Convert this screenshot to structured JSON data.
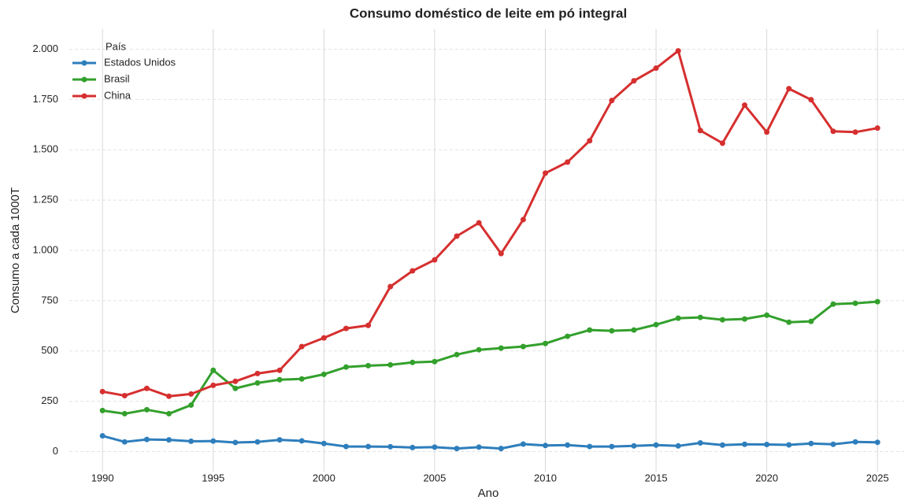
{
  "chart_data": {
    "type": "line",
    "title": "Consumo doméstico de leite em pó integral",
    "xlabel": "Ano",
    "ylabel": "Consumo a cada 1000T",
    "legend_title": "País",
    "legend": "upper left",
    "x": [
      1990,
      1991,
      1992,
      1993,
      1994,
      1995,
      1996,
      1997,
      1998,
      1999,
      2000,
      2001,
      2002,
      2003,
      2004,
      2005,
      2006,
      2007,
      2008,
      2009,
      2010,
      2011,
      2012,
      2013,
      2014,
      2015,
      2016,
      2017,
      2018,
      2019,
      2020,
      2021,
      2022,
      2023,
      2024,
      2025
    ],
    "series": [
      {
        "name": "Estados Unidos",
        "color": "#2e7ebc",
        "values": [
          78,
          48,
          60,
          58,
          51,
          52,
          45,
          48,
          58,
          53,
          40,
          25,
          25,
          24,
          20,
          22,
          15,
          22,
          15,
          37,
          30,
          32,
          25,
          25,
          28,
          32,
          28,
          43,
          32,
          36,
          35,
          33,
          40,
          36,
          48,
          46
        ]
      },
      {
        "name": "Brasil",
        "color": "#33a02c",
        "values": [
          204,
          188,
          208,
          188,
          231,
          404,
          314,
          341,
          357,
          361,
          384,
          420,
          427,
          431,
          443,
          447,
          482,
          506,
          514,
          522,
          537,
          573,
          604,
          600,
          604,
          631,
          663,
          667,
          655,
          659,
          678,
          643,
          647,
          733,
          737,
          745
        ]
      },
      {
        "name": "China",
        "color": "#d62f2f",
        "values": [
          298,
          278,
          314,
          275,
          286,
          329,
          349,
          388,
          404,
          522,
          565,
          612,
          627,
          820,
          898,
          953,
          1071,
          1137,
          984,
          1153,
          1384,
          1439,
          1545,
          1745,
          1843,
          1906,
          1992,
          1596,
          1533,
          1722,
          1588,
          1804,
          1749,
          1592,
          1588,
          1608
        ]
      }
    ],
    "xlim": [
      1988.5,
      2026.2
    ],
    "xticks": [
      1990,
      1995,
      2000,
      2005,
      2010,
      2015,
      2020,
      2025
    ],
    "ylim": [
      -100,
      2100
    ],
    "yticks": [
      0,
      250,
      500,
      750,
      {
        "value": 1000,
        "label": "1.000"
      },
      {
        "value": 1250,
        "label": "1.250"
      },
      {
        "value": 1500,
        "label": "1.500"
      },
      {
        "value": 1750,
        "label": "1.750"
      },
      {
        "value": 2000,
        "label": "2.000"
      }
    ],
    "grid": true
  }
}
